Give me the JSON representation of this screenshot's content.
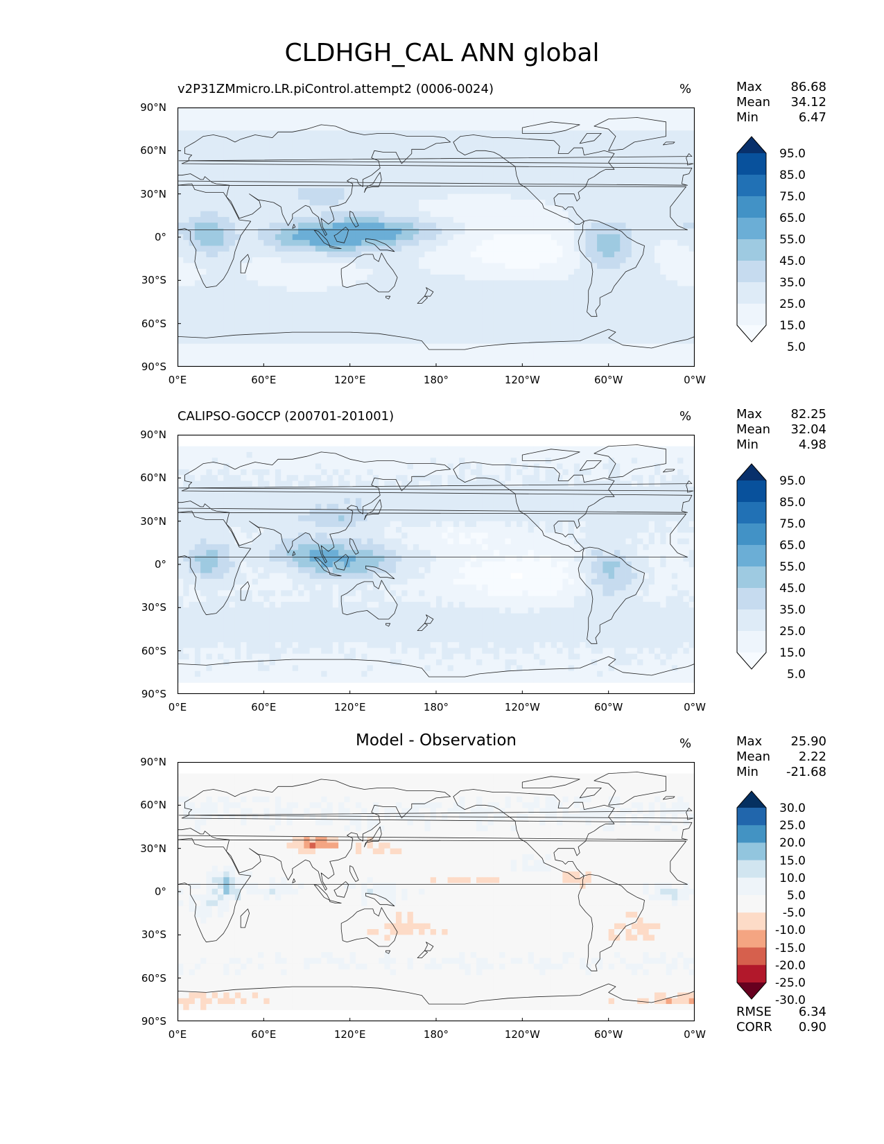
{
  "title": "CLDHGH_CAL ANN global",
  "lat_ticks": [
    "90°N",
    "60°N",
    "30°N",
    "0°",
    "30°S",
    "60°S",
    "90°S"
  ],
  "lon_ticks": [
    "0°E",
    "60°E",
    "120°E",
    "180°",
    "120°W",
    "60°W",
    "0°W"
  ],
  "units": "%",
  "panels": [
    {
      "title": "v2P31ZMmicro.LR.piControl.attempt2 (0006-0024)",
      "title_align": "left",
      "stats": [
        {
          "label": "Max",
          "value": "86.68"
        },
        {
          "label": "Mean",
          "value": "34.12"
        },
        {
          "label": "Min",
          "value": "6.47"
        }
      ],
      "colorbar_labels": [
        "95.0",
        "85.0",
        "75.0",
        "65.0",
        "55.0",
        "45.0",
        "35.0",
        "25.0",
        "15.0",
        "5.0"
      ],
      "colorbar_colors": [
        "#08306b",
        "#08519c",
        "#2171b5",
        "#4292c6",
        "#6baed6",
        "#9ecae1",
        "#c6dbef",
        "#deebf7",
        "#eef5fc",
        "#f7fbff"
      ],
      "field_type": "model"
    },
    {
      "title": "CALIPSO-GOCCP (200701-201001)",
      "title_align": "left",
      "stats": [
        {
          "label": "Max",
          "value": "82.25"
        },
        {
          "label": "Mean",
          "value": "32.04"
        },
        {
          "label": "Min",
          "value": "4.98"
        }
      ],
      "colorbar_labels": [
        "95.0",
        "85.0",
        "75.0",
        "65.0",
        "55.0",
        "45.0",
        "35.0",
        "25.0",
        "15.0",
        "5.0"
      ],
      "colorbar_colors": [
        "#08306b",
        "#08519c",
        "#2171b5",
        "#4292c6",
        "#6baed6",
        "#9ecae1",
        "#c6dbef",
        "#deebf7",
        "#eef5fc",
        "#f7fbff"
      ],
      "field_type": "obs"
    },
    {
      "title": "Model - Observation",
      "title_align": "center",
      "stats": [
        {
          "label": "Max",
          "value": "25.90"
        },
        {
          "label": "Mean",
          "value": "2.22"
        },
        {
          "label": "Min",
          "value": "-21.68"
        }
      ],
      "colorbar_labels": [
        "30.0",
        "25.0",
        "20.0",
        "15.0",
        "10.0",
        "5.0",
        "-5.0",
        "-10.0",
        "-15.0",
        "-20.0",
        "-25.0",
        "-30.0"
      ],
      "colorbar_colors": [
        "#053061",
        "#2166ac",
        "#4393c3",
        "#92c5de",
        "#d1e5f0",
        "#eef4f9",
        "#f7f7f7",
        "#fddbc7",
        "#f4a582",
        "#d6604d",
        "#b2182b",
        "#67001f"
      ],
      "bottom_stats": [
        {
          "label": "RMSE",
          "value": "6.34"
        },
        {
          "label": "CORR",
          "value": "0.90"
        }
      ],
      "field_type": "diff"
    }
  ]
}
